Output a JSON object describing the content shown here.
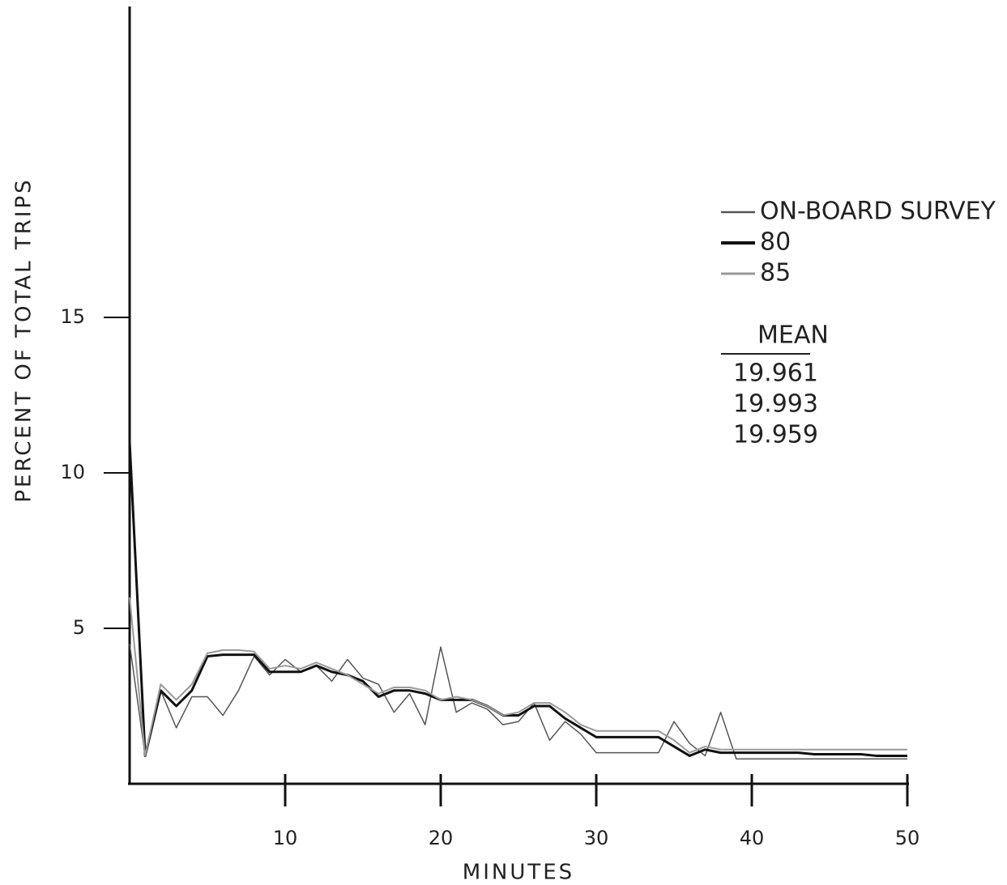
{
  "chart_data": {
    "type": "line",
    "x_label": "MINUTES",
    "y_label": "PERCENT OF TOTAL TRIPS",
    "x": [
      0,
      1,
      2,
      3,
      4,
      5,
      6,
      7,
      8,
      9,
      10,
      11,
      12,
      13,
      14,
      15,
      16,
      17,
      18,
      19,
      20,
      21,
      22,
      23,
      24,
      25,
      26,
      27,
      28,
      29,
      30,
      31,
      32,
      33,
      34,
      35,
      36,
      37,
      38,
      39,
      40,
      41,
      42,
      43,
      44,
      45,
      46,
      47,
      48,
      49,
      50
    ],
    "xlim": [
      0,
      50
    ],
    "xticks": [
      10,
      20,
      30,
      40,
      50
    ],
    "ylim": [
      0,
      25
    ],
    "yticks": [
      5,
      10,
      15
    ],
    "series": [
      {
        "name": "ON-BOARD SURVEY",
        "color": "#555555",
        "line_width": 1.5,
        "values": [
          4.5,
          0.9,
          3.0,
          1.8,
          2.8,
          2.8,
          2.2,
          3.0,
          4.1,
          3.5,
          4.0,
          3.6,
          3.8,
          3.3,
          4.0,
          3.4,
          3.2,
          2.3,
          2.9,
          1.9,
          4.4,
          2.3,
          2.6,
          2.4,
          1.9,
          2.0,
          2.6,
          1.4,
          2.0,
          1.6,
          1.0,
          1.0,
          1.0,
          1.0,
          1.0,
          2.0,
          1.3,
          0.9,
          2.3,
          0.8,
          0.8,
          0.8,
          0.8,
          0.8,
          0.8,
          0.8,
          0.8,
          0.8,
          0.8,
          0.8,
          0.8
        ]
      },
      {
        "name": "80",
        "color": "#111111",
        "line_width": 3,
        "values": [
          11,
          0.9,
          3.0,
          2.5,
          3.0,
          4.1,
          4.15,
          4.15,
          4.15,
          3.6,
          3.6,
          3.6,
          3.8,
          3.6,
          3.5,
          3.3,
          2.8,
          3.0,
          3.0,
          2.9,
          2.7,
          2.7,
          2.7,
          2.5,
          2.2,
          2.2,
          2.5,
          2.5,
          2.1,
          1.8,
          1.5,
          1.5,
          1.5,
          1.5,
          1.5,
          1.2,
          0.9,
          1.1,
          1.0,
          1.0,
          1.0,
          1.0,
          1.0,
          1.0,
          0.95,
          0.95,
          0.95,
          0.95,
          0.9,
          0.9,
          0.9
        ]
      },
      {
        "name": "85",
        "color": "#9a9a9a",
        "line_width": 2,
        "values": [
          6.0,
          0.9,
          3.2,
          2.7,
          3.2,
          4.2,
          4.3,
          4.3,
          4.25,
          3.7,
          3.8,
          3.7,
          3.9,
          3.7,
          3.5,
          3.2,
          2.9,
          3.1,
          3.1,
          3.0,
          2.7,
          2.8,
          2.7,
          2.5,
          2.2,
          2.3,
          2.6,
          2.6,
          2.3,
          1.9,
          1.7,
          1.7,
          1.7,
          1.7,
          1.7,
          1.4,
          1.0,
          1.2,
          1.1,
          1.1,
          1.1,
          1.1,
          1.1,
          1.1,
          1.1,
          1.1,
          1.1,
          1.1,
          1.1,
          1.1,
          1.1
        ]
      }
    ],
    "mean_title": "MEAN",
    "means": [
      19.961,
      19.993,
      19.959
    ]
  }
}
